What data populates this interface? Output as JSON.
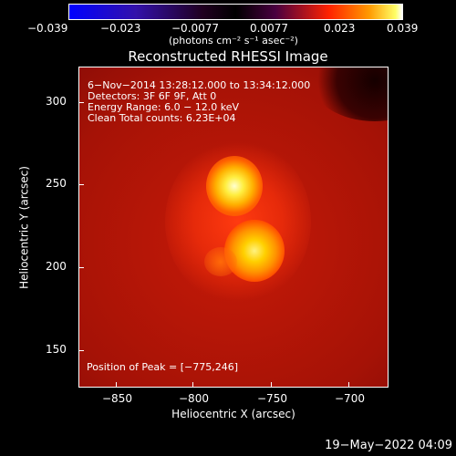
{
  "colorbar": {
    "tick_labels": [
      "−0.039",
      "−0.023",
      "−0.0077",
      "0.0077",
      "0.023",
      "0.039"
    ],
    "unit_label": "(photons cm⁻² s⁻¹ asec⁻²)"
  },
  "plot": {
    "title": "Reconstructed RHESSI Image",
    "info_lines": [
      "6−Nov−2014 13:28:12.000 to 13:34:12.000",
      "Detectors: 3F 6F 9F, Att 0",
      "Energy Range: 6.0 − 12.0 keV",
      "Clean    Total counts: 6.23E+04"
    ],
    "peak_label": "Position of Peak = [−775,246]",
    "xlabel": "Heliocentric X (arcsec)",
    "ylabel": "Heliocentric Y (arcsec)",
    "x_ticks": [
      "−850",
      "−800",
      "−750",
      "−700"
    ],
    "y_ticks": [
      "300",
      "250",
      "200",
      "150"
    ]
  },
  "footer": {
    "timestamp": "19−May−2022 04:09"
  }
}
